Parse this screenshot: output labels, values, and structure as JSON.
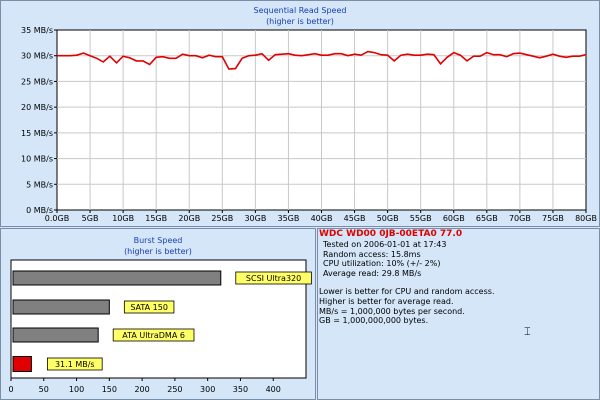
{
  "sequential": {
    "title": "Sequential Read Speed",
    "subtitle": "(higher is better)",
    "chart_data": {
      "type": "line",
      "title": "Sequential Read Speed",
      "subtitle": "(higher is better)",
      "ylim": [
        0,
        35
      ],
      "xlim": [
        0,
        80
      ],
      "y_ticks": [
        "0 MB/s",
        "5 MB/s",
        "10 MB/s",
        "15 MB/s",
        "20 MB/s",
        "25 MB/s",
        "30 MB/s",
        "35 MB/s"
      ],
      "x_ticks": [
        "0.0GB",
        "5GB",
        "10GB",
        "15GB",
        "20GB",
        "25GB",
        "30GB",
        "35GB",
        "40GB",
        "45GB",
        "50GB",
        "55GB",
        "60GB",
        "65GB",
        "70GB",
        "75GB",
        "80GB"
      ],
      "grid": true,
      "color": "#e00000",
      "x": [
        0,
        1,
        2,
        3,
        4,
        5,
        6,
        7,
        8,
        9,
        10,
        11,
        12,
        13,
        14,
        15,
        16,
        17,
        18,
        19,
        20,
        21,
        22,
        23,
        24,
        25,
        26,
        27,
        28,
        29,
        30,
        31,
        32,
        33,
        34,
        35,
        36,
        37,
        38,
        39,
        40,
        41,
        42,
        43,
        44,
        45,
        46,
        47,
        48,
        49,
        50,
        51,
        52,
        53,
        54,
        55,
        56,
        57,
        58,
        59,
        60,
        61,
        62,
        63,
        64,
        65,
        66,
        67,
        68,
        69,
        70,
        71,
        72,
        73,
        74,
        75,
        76,
        77,
        78,
        79,
        80
      ],
      "y": [
        30.0,
        30.0,
        30.0,
        30.1,
        30.5,
        30.0,
        29.5,
        28.8,
        29.9,
        28.6,
        29.9,
        29.6,
        29.0,
        29.0,
        28.3,
        29.7,
        29.8,
        29.5,
        29.5,
        30.3,
        30.0,
        30.0,
        29.6,
        30.1,
        29.8,
        29.8,
        27.4,
        27.5,
        29.5,
        30.0,
        30.1,
        30.4,
        29.1,
        30.2,
        30.3,
        30.4,
        30.1,
        30.0,
        30.2,
        30.4,
        30.1,
        30.1,
        30.4,
        30.4,
        30.0,
        30.3,
        30.1,
        30.8,
        30.6,
        30.2,
        30.1,
        29.0,
        30.1,
        30.3,
        30.1,
        30.1,
        30.3,
        30.2,
        28.4,
        29.7,
        30.6,
        30.1,
        29.0,
        29.9,
        29.9,
        30.6,
        30.2,
        30.2,
        29.8,
        30.4,
        30.5,
        30.2,
        29.9,
        29.6,
        29.9,
        30.3,
        29.9,
        29.7,
        29.9,
        29.9,
        30.2
      ]
    }
  },
  "burst": {
    "title": "Burst Speed",
    "subtitle": "(higher is better)",
    "chart_data": {
      "type": "bar",
      "orientation": "horizontal",
      "title": "Burst Speed",
      "subtitle": "(higher is better)",
      "xlim": [
        0,
        450
      ],
      "x_ticks": [
        "0",
        "50",
        "100",
        "150",
        "200",
        "250",
        "300",
        "350",
        "400"
      ],
      "series": [
        {
          "label": "SCSI Ultra320",
          "value": 320,
          "color": "#808080"
        },
        {
          "label": "SATA 150",
          "value": 150,
          "color": "#808080"
        },
        {
          "label": "ATA UltraDMA 6",
          "value": 133,
          "color": "#808080"
        },
        {
          "label": "31.1 MB/s",
          "value": 31.1,
          "color": "#e00000"
        }
      ]
    }
  },
  "info": {
    "drive": "WDC WD00 0JB-00ETA0 77.0",
    "tested": "Tested on 2006-01-01 at 17:43",
    "random_access": "Random access: 15.8ms",
    "cpu": "CPU utilization: 10% (+/- 2%)",
    "average": "Average read: 29.8 MB/s",
    "note1": "Lower is better for CPU and random access.",
    "note2": "Higher is better for average read.",
    "note3": "MB/s = 1,000,000 bytes per second.",
    "note4": "GB = 1,000,000,000 bytes."
  }
}
